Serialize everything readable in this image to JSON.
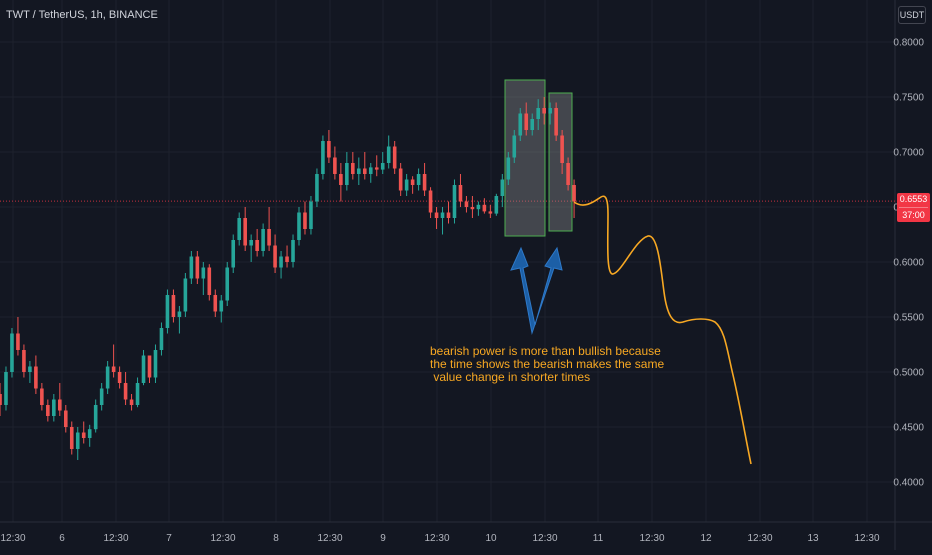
{
  "header": {
    "symbol_title": "TWT / TetherUS, 1h, BINANCE",
    "currency": "USDT"
  },
  "price_tag": {
    "price": "0.6553",
    "countdown": "37:00"
  },
  "annotation": {
    "lines": [
      "bearish power is more than bullish because",
      "the time shows the bearish makes the same",
      " value change in shorter times"
    ]
  },
  "colors": {
    "background": "#131722",
    "grid": "#1e222d",
    "bull": "#26a69a",
    "bear": "#ef5350",
    "drawing": "#f7a823",
    "arrow": "#1c5fa6",
    "box_border": "#4caf50",
    "box_fill": "#9e9e9e",
    "price_line": "#f23645",
    "axis_text": "#b2b5be"
  },
  "chart_data": {
    "type": "candlestick",
    "symbol": "TWT / TetherUS",
    "interval": "1h",
    "exchange": "BINANCE",
    "y_axis": {
      "ticks": [
        "0.8000",
        "0.7500",
        "0.7000",
        "0.6500",
        "0.6000",
        "0.5500",
        "0.5000",
        "0.4500",
        "0.4000"
      ],
      "range": [
        0.37,
        0.83
      ]
    },
    "x_axis": {
      "ticks": [
        "12:30",
        "6",
        "12:30",
        "7",
        "12:30",
        "8",
        "12:30",
        "9",
        "12:30",
        "10",
        "12:30",
        "11",
        "12:30",
        "12",
        "12:30",
        "13",
        "12:30"
      ]
    },
    "current_price": 0.6553,
    "candles": [
      [
        0.48,
        0.49,
        0.46,
        0.47
      ],
      [
        0.47,
        0.505,
        0.465,
        0.5
      ],
      [
        0.5,
        0.54,
        0.495,
        0.535
      ],
      [
        0.535,
        0.55,
        0.515,
        0.52
      ],
      [
        0.52,
        0.525,
        0.495,
        0.5
      ],
      [
        0.5,
        0.51,
        0.49,
        0.505
      ],
      [
        0.505,
        0.515,
        0.48,
        0.485
      ],
      [
        0.485,
        0.49,
        0.465,
        0.47
      ],
      [
        0.47,
        0.475,
        0.455,
        0.46
      ],
      [
        0.46,
        0.48,
        0.455,
        0.475
      ],
      [
        0.475,
        0.49,
        0.46,
        0.465
      ],
      [
        0.465,
        0.47,
        0.445,
        0.45
      ],
      [
        0.45,
        0.455,
        0.425,
        0.43
      ],
      [
        0.43,
        0.45,
        0.42,
        0.445
      ],
      [
        0.445,
        0.455,
        0.435,
        0.44
      ],
      [
        0.44,
        0.452,
        0.432,
        0.448
      ],
      [
        0.448,
        0.475,
        0.445,
        0.47
      ],
      [
        0.47,
        0.49,
        0.465,
        0.485
      ],
      [
        0.485,
        0.51,
        0.48,
        0.505
      ],
      [
        0.505,
        0.525,
        0.495,
        0.5
      ],
      [
        0.5,
        0.505,
        0.485,
        0.49
      ],
      [
        0.49,
        0.5,
        0.47,
        0.475
      ],
      [
        0.475,
        0.48,
        0.465,
        0.47
      ],
      [
        0.47,
        0.495,
        0.468,
        0.49
      ],
      [
        0.49,
        0.52,
        0.488,
        0.515
      ],
      [
        0.515,
        0.512,
        0.49,
        0.495
      ],
      [
        0.495,
        0.525,
        0.49,
        0.52
      ],
      [
        0.52,
        0.545,
        0.515,
        0.54
      ],
      [
        0.54,
        0.575,
        0.535,
        0.57
      ],
      [
        0.57,
        0.575,
        0.545,
        0.55
      ],
      [
        0.55,
        0.56,
        0.535,
        0.555
      ],
      [
        0.555,
        0.59,
        0.55,
        0.585
      ],
      [
        0.585,
        0.61,
        0.58,
        0.605
      ],
      [
        0.605,
        0.61,
        0.58,
        0.585
      ],
      [
        0.585,
        0.6,
        0.57,
        0.595
      ],
      [
        0.595,
        0.598,
        0.565,
        0.57
      ],
      [
        0.57,
        0.575,
        0.55,
        0.555
      ],
      [
        0.555,
        0.57,
        0.545,
        0.565
      ],
      [
        0.565,
        0.6,
        0.56,
        0.595
      ],
      [
        0.595,
        0.625,
        0.59,
        0.62
      ],
      [
        0.62,
        0.645,
        0.615,
        0.64
      ],
      [
        0.64,
        0.65,
        0.61,
        0.615
      ],
      [
        0.615,
        0.625,
        0.6,
        0.62
      ],
      [
        0.62,
        0.63,
        0.605,
        0.61
      ],
      [
        0.61,
        0.635,
        0.605,
        0.63
      ],
      [
        0.63,
        0.65,
        0.61,
        0.615
      ],
      [
        0.615,
        0.625,
        0.59,
        0.595
      ],
      [
        0.595,
        0.61,
        0.585,
        0.605
      ],
      [
        0.605,
        0.615,
        0.595,
        0.6
      ],
      [
        0.6,
        0.625,
        0.595,
        0.62
      ],
      [
        0.62,
        0.65,
        0.615,
        0.645
      ],
      [
        0.645,
        0.655,
        0.625,
        0.63
      ],
      [
        0.63,
        0.66,
        0.625,
        0.655
      ],
      [
        0.655,
        0.685,
        0.65,
        0.68
      ],
      [
        0.68,
        0.715,
        0.675,
        0.71
      ],
      [
        0.71,
        0.72,
        0.69,
        0.695
      ],
      [
        0.695,
        0.705,
        0.675,
        0.68
      ],
      [
        0.68,
        0.69,
        0.655,
        0.67
      ],
      [
        0.67,
        0.7,
        0.665,
        0.69
      ],
      [
        0.69,
        0.7,
        0.675,
        0.68
      ],
      [
        0.68,
        0.695,
        0.67,
        0.685
      ],
      [
        0.685,
        0.7,
        0.675,
        0.68
      ],
      [
        0.68,
        0.69,
        0.672,
        0.686
      ],
      [
        0.686,
        0.697,
        0.678,
        0.684
      ],
      [
        0.684,
        0.7,
        0.68,
        0.69
      ],
      [
        0.69,
        0.715,
        0.685,
        0.705
      ],
      [
        0.705,
        0.71,
        0.68,
        0.685
      ],
      [
        0.685,
        0.69,
        0.66,
        0.665
      ],
      [
        0.665,
        0.68,
        0.66,
        0.675
      ],
      [
        0.675,
        0.678,
        0.662,
        0.67
      ],
      [
        0.67,
        0.685,
        0.665,
        0.68
      ],
      [
        0.68,
        0.69,
        0.66,
        0.665
      ],
      [
        0.665,
        0.668,
        0.64,
        0.645
      ],
      [
        0.645,
        0.65,
        0.63,
        0.64
      ],
      [
        0.64,
        0.65,
        0.625,
        0.645
      ],
      [
        0.645,
        0.655,
        0.635,
        0.64
      ],
      [
        0.64,
        0.675,
        0.635,
        0.67
      ],
      [
        0.67,
        0.68,
        0.65,
        0.655
      ],
      [
        0.655,
        0.66,
        0.645,
        0.65
      ],
      [
        0.65,
        0.66,
        0.64,
        0.648
      ],
      [
        0.648,
        0.655,
        0.642,
        0.652
      ],
      [
        0.652,
        0.658,
        0.644,
        0.646
      ],
      [
        0.646,
        0.652,
        0.64,
        0.644
      ],
      [
        0.644,
        0.662,
        0.642,
        0.66
      ],
      [
        0.66,
        0.68,
        0.65,
        0.675
      ],
      [
        0.675,
        0.7,
        0.67,
        0.695
      ],
      [
        0.695,
        0.72,
        0.69,
        0.715
      ],
      [
        0.715,
        0.74,
        0.71,
        0.735
      ],
      [
        0.735,
        0.745,
        0.715,
        0.72
      ],
      [
        0.72,
        0.735,
        0.715,
        0.73
      ],
      [
        0.73,
        0.748,
        0.72,
        0.74
      ],
      [
        0.74,
        0.75,
        0.725,
        0.735
      ],
      [
        0.735,
        0.745,
        0.725,
        0.74
      ],
      [
        0.74,
        0.745,
        0.71,
        0.715
      ],
      [
        0.715,
        0.72,
        0.68,
        0.69
      ],
      [
        0.69,
        0.695,
        0.665,
        0.67
      ],
      [
        0.67,
        0.675,
        0.64,
        0.655
      ]
    ],
    "projection": [
      [
        "11",
        0.65
      ],
      [
        "11:30",
        0.662
      ],
      [
        "11 18:00",
        0.59
      ],
      [
        "12:30",
        0.622
      ],
      [
        "12:30b",
        0.548
      ],
      [
        "12",
        0.54
      ],
      [
        "12:30c",
        0.415
      ]
    ]
  }
}
